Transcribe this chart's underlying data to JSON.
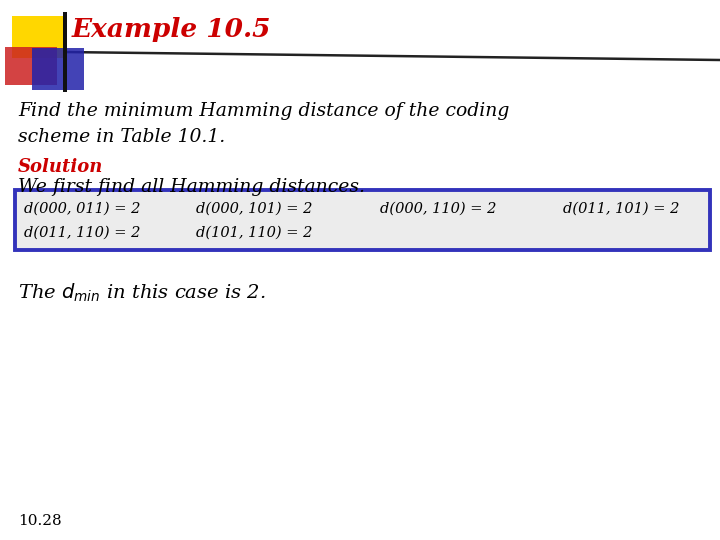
{
  "title": "Example 10.5",
  "title_color": "#CC0000",
  "bg_color": "#FFFFFF",
  "body_text_1": "Find the minimum Hamming distance of the coding\nscheme in Table 10.1.",
  "solution_label": "Solution",
  "solution_color": "#CC0000",
  "body_text_2": "We first find all Hamming distances.",
  "box_line1_cols": [
    "d(000, 011) = 2",
    "d(000, 101) = 2",
    "d(000, 110) = 2",
    "d(011, 101) = 2"
  ],
  "box_line2_cols": [
    "d(011, 110) = 2",
    "d(101, 110) = 2"
  ],
  "box_bg": "#ECECEC",
  "box_border": "#3333BB",
  "footer": "10.28",
  "header_bar_yellow": "#FFD700",
  "header_bar_red": "#CC2222",
  "header_bar_blue": "#2222AA",
  "header_line_color": "#111111"
}
